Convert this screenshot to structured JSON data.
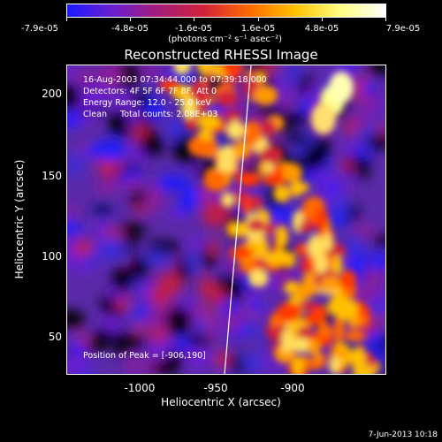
{
  "colorbar": {
    "labels": [
      "-7.9e-05",
      "-4.8e-05",
      "-1.6e-05",
      "1.6e-05",
      "4.8e-05",
      "7.9e-05"
    ],
    "units": "(photons cm⁻² s⁻¹ asec⁻²)",
    "colors": [
      "#1a1aff",
      "#6a1fd0",
      "#a41d7a",
      "#d1223a",
      "#ff6a00",
      "#ffc000",
      "#ffff80",
      "#ffffff"
    ]
  },
  "title": "Reconstructed RHESSI Image",
  "info": {
    "line1": "16-Aug-2003 07:34:44.000 to 07:39:18.000",
    "line2": "Detectors: 4F 5F 6F 7F 8F, Att 0",
    "line3": "Energy Range: 12.0 - 25.0 keV",
    "line4": "Clean     Total counts: 2.08E+03"
  },
  "peak": "Position of Peak = [-906,190]",
  "axes": {
    "xlabel": "Heliocentric X (arcsec)",
    "ylabel": "Heliocentric Y (arcsec)",
    "xticks": [
      "-1000",
      "-950",
      "-900"
    ],
    "yticks": [
      "200",
      "150",
      "100",
      "50"
    ]
  },
  "timestamp": "7-Jun-2013 10:18"
}
